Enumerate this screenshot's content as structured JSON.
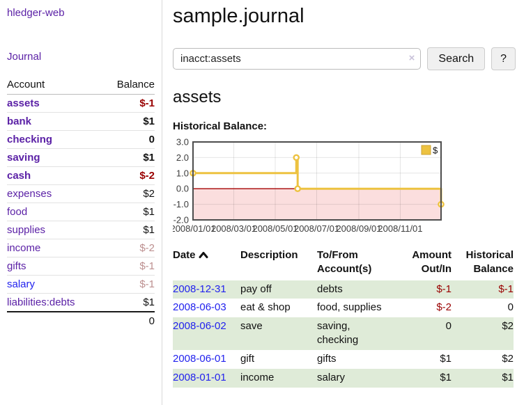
{
  "colors": {
    "purple_link": "#5b21a6",
    "blue_link": "#2222ee",
    "neg_strong": "#990000",
    "neg_muted": "#bc8f8f",
    "stripe_green": "#dfebd8"
  },
  "sidebar": {
    "brand": "hledger-web",
    "nav": {
      "journal": "Journal"
    },
    "accounts_table": {
      "headers": {
        "account": "Account",
        "balance": "Balance"
      },
      "rows": [
        {
          "name": "assets",
          "balance": "$-1"
        },
        {
          "name": "bank",
          "balance": "$1"
        },
        {
          "name": "checking",
          "balance": "0"
        },
        {
          "name": "saving",
          "balance": "$1"
        },
        {
          "name": "cash",
          "balance": "$-2"
        },
        {
          "name": "expenses",
          "balance": "$2"
        },
        {
          "name": "food",
          "balance": "$1"
        },
        {
          "name": "supplies",
          "balance": "$1"
        },
        {
          "name": "income",
          "balance": "$-2"
        },
        {
          "name": "gifts",
          "balance": "$-1"
        },
        {
          "name": "salary",
          "balance": "$-1"
        },
        {
          "name": "liabilities:debts",
          "balance": "$1"
        }
      ],
      "total": "0"
    }
  },
  "main": {
    "title": "sample.journal",
    "search": {
      "value": "inacct:assets",
      "clear_icon": "×",
      "button": "Search",
      "help_button": "?"
    },
    "account_heading": "assets",
    "chart_label": "Historical Balance:"
  },
  "chart_data": {
    "type": "line",
    "step": true,
    "title": "Historical Balance",
    "xlabel": "",
    "ylabel": "",
    "ylim": [
      -2,
      3
    ],
    "grid": true,
    "legend_position": "top-right",
    "series": [
      {
        "name": "$",
        "points": [
          {
            "date": "2008-01-01",
            "value": 1
          },
          {
            "date": "2008-06-01",
            "value": 2
          },
          {
            "date": "2008-06-03",
            "value": 0
          },
          {
            "date": "2008-12-31",
            "value": -1
          }
        ]
      }
    ],
    "x_range": [
      "2008-01-01",
      "2008-12-31"
    ],
    "y_ticks": [
      {
        "v": 3,
        "label": "3.0"
      },
      {
        "v": 2,
        "label": "2.0"
      },
      {
        "v": 1,
        "label": "1.0"
      },
      {
        "v": 0,
        "label": "0.0"
      },
      {
        "v": -1,
        "label": "-1.0"
      },
      {
        "v": -2,
        "label": "-2.0"
      }
    ],
    "x_ticks": [
      {
        "date": "2008-01-01",
        "label": "2008/01/01"
      },
      {
        "date": "2008-03-01",
        "label": "2008/03/01"
      },
      {
        "date": "2008-05-01",
        "label": "2008/05/01"
      },
      {
        "date": "2008-07-01",
        "label": "2008/07/01"
      },
      {
        "date": "2008-09-01",
        "label": "2008/09/01"
      },
      {
        "date": "2008-11-01",
        "label": "2008/11/01"
      }
    ],
    "colors": {
      "line": "#EDC240",
      "legend_border": "#CBA135",
      "below_zero_fill": "#FBDEDE",
      "zero_line": "#A40000",
      "border": "#4D4D4D",
      "gridline": "rgba(0,0,0,0.10)"
    }
  },
  "register_table": {
    "headers": {
      "date": "Date",
      "description": "Description",
      "accounts": "To/From Account(s)",
      "amount": "Amount Out/In",
      "balance": "Historical Balance"
    },
    "rows": [
      {
        "date": "2008-12-31",
        "description": "pay off",
        "accounts": "debts",
        "amount": "$-1",
        "balance": "$-1"
      },
      {
        "date": "2008-06-03",
        "description": "eat & shop",
        "accounts": "food, supplies",
        "amount": "$-2",
        "balance": "0"
      },
      {
        "date": "2008-06-02",
        "description": "save",
        "accounts": "saving, checking",
        "amount": "0",
        "balance": "$2"
      },
      {
        "date": "2008-06-01",
        "description": "gift",
        "accounts": "gifts",
        "amount": "$1",
        "balance": "$2"
      },
      {
        "date": "2008-01-01",
        "description": "income",
        "accounts": "salary",
        "amount": "$1",
        "balance": "$1"
      }
    ]
  }
}
